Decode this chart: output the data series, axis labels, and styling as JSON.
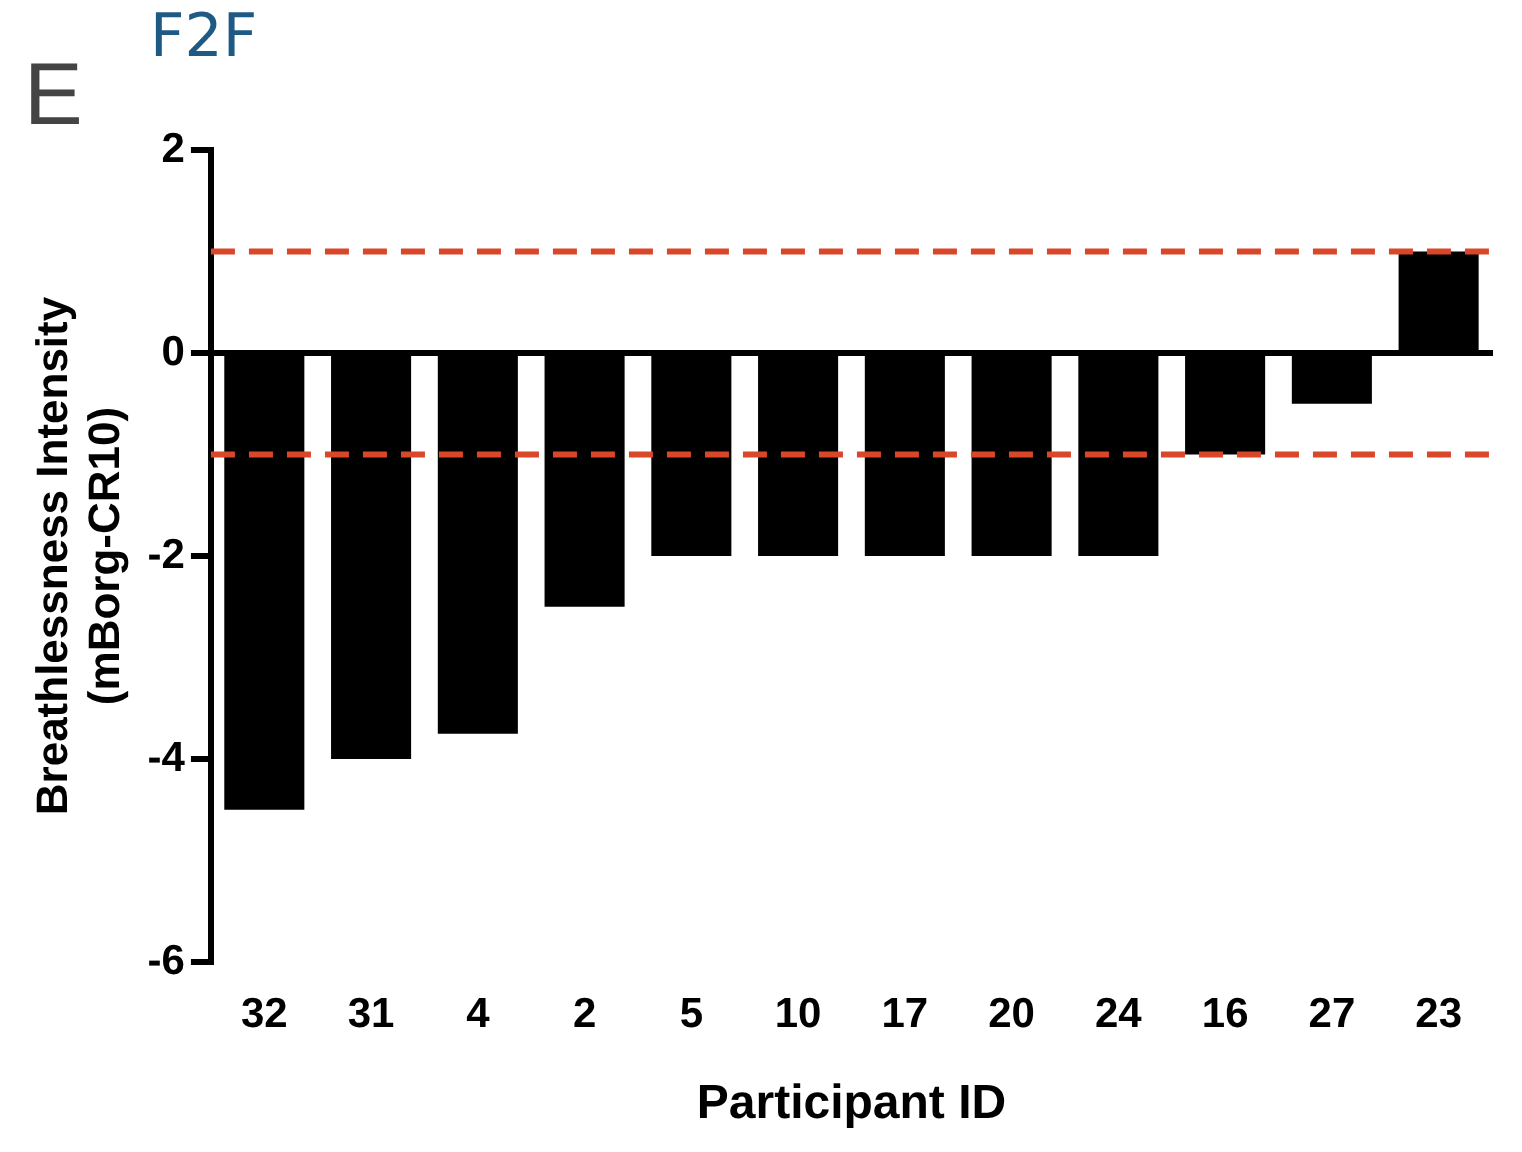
{
  "chart_data": {
    "type": "bar",
    "title": "F2F",
    "annotations": [
      "E"
    ],
    "xlabel": "Participant ID",
    "ylabel": "Breathlessness Intensity\n(mBorg-CR10)",
    "categories": [
      "32",
      "31",
      "4",
      "2",
      "5",
      "10",
      "17",
      "20",
      "24",
      "16",
      "27",
      "23"
    ],
    "values": [
      -4.5,
      -4,
      -3.75,
      -2.5,
      -2,
      -2,
      -2,
      -2,
      -2,
      -1,
      -0.5,
      1
    ],
    "color": "#000000",
    "ylim": [
      -6,
      2
    ],
    "yticks": [
      -6,
      -4,
      -2,
      0,
      2
    ],
    "legend": false,
    "ref_lines": [
      {
        "axis": "y",
        "value": 1,
        "color": "#d9472b",
        "line_style": "dashed"
      },
      {
        "axis": "y",
        "value": -1,
        "color": "#d9472b",
        "line_style": "dashed"
      }
    ]
  }
}
